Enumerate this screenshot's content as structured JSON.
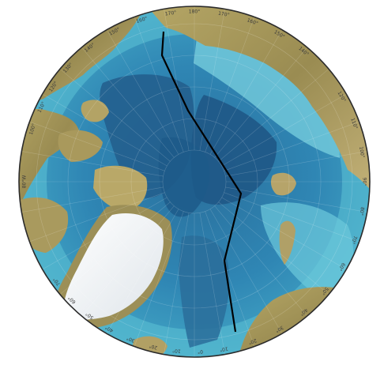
{
  "map": {
    "projection": "north-polar-stereographic",
    "colors": {
      "deep_ocean": "#1f5f8c",
      "mid_ocean": "#2f86b4",
      "shelf": "#48b6cf",
      "shallow": "#86d6e2",
      "land_low": "#9b8f56",
      "land_high": "#c9b57a",
      "ice": "#f4f6f8",
      "boundary_line": "#000000"
    },
    "longitude_labels": [
      {
        "id": "lon-170w",
        "text": "170°"
      },
      {
        "id": "lon-180",
        "text": "180°"
      },
      {
        "id": "lon-170e",
        "text": "170°"
      },
      {
        "id": "lon-160e",
        "text": "160°"
      },
      {
        "id": "lon-150e",
        "text": "150°"
      },
      {
        "id": "lon-140e",
        "text": "140°"
      },
      {
        "id": "lon-120e",
        "text": "120°"
      },
      {
        "id": "lon-110e",
        "text": "110°"
      },
      {
        "id": "lon-100e",
        "text": "100°"
      },
      {
        "id": "lon-90e",
        "text": "90°"
      },
      {
        "id": "lon-80e",
        "text": "80°"
      },
      {
        "id": "lon-70e",
        "text": "70°"
      },
      {
        "id": "lon-60e",
        "text": "60°"
      },
      {
        "id": "lon-50e",
        "text": "50°"
      },
      {
        "id": "lon-40e",
        "text": "40°"
      },
      {
        "id": "lon-30e",
        "text": "30°"
      },
      {
        "id": "lon-20e",
        "text": "20°"
      },
      {
        "id": "lon-10e",
        "text": "10°"
      },
      {
        "id": "lon-0",
        "text": "0°"
      },
      {
        "id": "lon-10w",
        "text": "10°"
      },
      {
        "id": "lon-20w",
        "text": "20°"
      },
      {
        "id": "lon-30w",
        "text": "30°"
      },
      {
        "id": "lon-40w",
        "text": "40°"
      },
      {
        "id": "lon-50w",
        "text": "50°"
      },
      {
        "id": "lon-60w",
        "text": "60°"
      },
      {
        "id": "lon-70w",
        "text": "70°"
      },
      {
        "id": "lon-80w",
        "text": "80°W"
      },
      {
        "id": "lon-100w",
        "text": "100°"
      },
      {
        "id": "lon-110w",
        "text": "110°"
      },
      {
        "id": "lon-120w",
        "text": "120°"
      },
      {
        "id": "lon-130w",
        "text": "130°"
      },
      {
        "id": "lon-140w",
        "text": "140°"
      },
      {
        "id": "lon-150w",
        "text": "150°"
      },
      {
        "id": "lon-160w",
        "text": "160°"
      }
    ]
  }
}
